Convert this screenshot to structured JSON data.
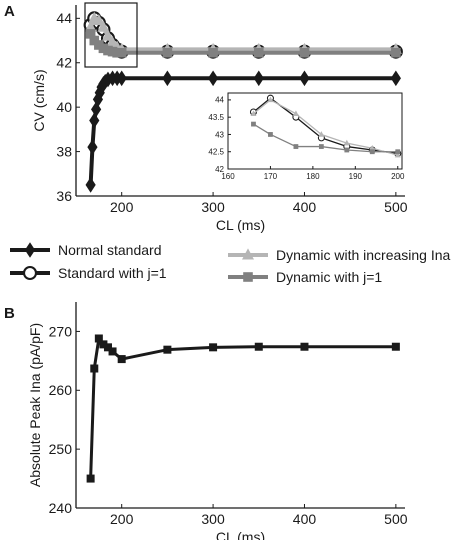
{
  "panels": {
    "a_label": "A",
    "b_label": "B"
  },
  "legend": {
    "entries": [
      {
        "label": "Normal standard",
        "color": "#1a1a1a",
        "marker": "diamond"
      },
      {
        "label": "Standard with j=1",
        "color": "#1a1a1a",
        "marker": "circle"
      },
      {
        "label": "Dynamic with increasing Ina",
        "color": "#b5b5b5",
        "marker": "triangle"
      },
      {
        "label": "Dynamic with j=1",
        "color": "#808080",
        "marker": "square"
      }
    ]
  },
  "chart_data": [
    {
      "id": "A",
      "type": "line",
      "xlabel": "CL (ms)",
      "ylabel": "CV (cm/s)",
      "xlim": [
        150,
        510
      ],
      "ylim": [
        36,
        44.6
      ],
      "xticks": [
        200,
        300,
        400,
        500
      ],
      "yticks": [
        36,
        38,
        40,
        42,
        44
      ],
      "series": [
        {
          "name": "Normal standard",
          "color": "#1a1a1a",
          "marker": "diamond",
          "x": [
            166,
            168,
            170,
            172,
            174,
            176,
            178,
            180,
            182,
            185,
            190,
            195,
            200,
            250,
            300,
            350,
            400,
            500
          ],
          "y": [
            36.5,
            38.2,
            39.4,
            39.9,
            40.35,
            40.65,
            40.9,
            41.05,
            41.15,
            41.25,
            41.3,
            41.3,
            41.3,
            41.3,
            41.3,
            41.3,
            41.3,
            41.3
          ]
        },
        {
          "name": "Standard with j=1",
          "color": "#1a1a1a",
          "marker": "circle",
          "x": [
            166,
            170,
            175,
            180,
            185,
            190,
            195,
            200,
            250,
            300,
            350,
            400,
            500
          ],
          "y": [
            43.7,
            44.0,
            43.8,
            43.5,
            43.1,
            42.8,
            42.6,
            42.5,
            42.5,
            42.5,
            42.5,
            42.5,
            42.5
          ]
        },
        {
          "name": "Dynamic with increasing Ina",
          "color": "#b5b5b5",
          "marker": "triangle",
          "x": [
            166,
            170,
            175,
            180,
            185,
            190,
            195,
            200,
            250,
            300,
            350,
            400,
            500
          ],
          "y": [
            43.6,
            44.0,
            43.9,
            43.6,
            43.2,
            42.9,
            42.7,
            42.6,
            42.6,
            42.6,
            42.6,
            42.6,
            42.6
          ]
        },
        {
          "name": "Dynamic with j=1",
          "color": "#808080",
          "marker": "square",
          "x": [
            166,
            170,
            175,
            180,
            185,
            190,
            195,
            200,
            250,
            300,
            350,
            400,
            500
          ],
          "y": [
            43.3,
            43.0,
            42.8,
            42.65,
            42.55,
            42.5,
            42.45,
            42.45,
            42.45,
            42.45,
            42.45,
            42.45,
            42.45
          ]
        }
      ]
    },
    {
      "id": "A-inset",
      "type": "line",
      "xlim": [
        160,
        201
      ],
      "ylim": [
        42,
        44.2
      ],
      "xticks": [
        160,
        170,
        180,
        190,
        200
      ],
      "yticks": [
        42,
        42.5,
        43,
        43.5,
        44
      ],
      "xtick_labels": [
        "160",
        "170",
        "180",
        "190",
        "200"
      ],
      "ytick_labels": [
        "42",
        "42.5",
        "43",
        "43.5",
        "44"
      ],
      "series": [
        {
          "name": "Standard with j=1",
          "color": "#1a1a1a",
          "marker": "circle",
          "x": [
            166,
            170,
            176,
            182,
            188,
            194,
            200
          ],
          "y": [
            43.65,
            44.05,
            43.5,
            42.9,
            42.65,
            42.55,
            42.45
          ]
        },
        {
          "name": "Dynamic with increasing Ina",
          "color": "#b5b5b5",
          "marker": "triangle",
          "x": [
            166,
            170,
            176,
            182,
            188,
            194,
            200
          ],
          "y": [
            43.6,
            44.0,
            43.6,
            43.0,
            42.75,
            42.6,
            42.4
          ]
        },
        {
          "name": "Dynamic with j=1",
          "color": "#808080",
          "marker": "square",
          "x": [
            166,
            170,
            176,
            182,
            188,
            194,
            200
          ],
          "y": [
            43.3,
            43.0,
            42.65,
            42.65,
            42.55,
            42.5,
            42.5
          ]
        }
      ]
    },
    {
      "id": "B",
      "type": "line",
      "xlabel": "CL (ms)",
      "ylabel": "Absolute Peak Ina (pA/pF)",
      "xlim": [
        150,
        510
      ],
      "ylim": [
        240,
        275
      ],
      "xticks": [
        200,
        300,
        400,
        500
      ],
      "yticks": [
        240,
        250,
        260,
        270
      ],
      "series": [
        {
          "name": "",
          "color": "#1a1a1a",
          "marker": "square",
          "x": [
            166,
            170,
            175,
            180,
            185,
            190,
            200,
            250,
            300,
            350,
            400,
            500
          ],
          "y": [
            245.0,
            263.7,
            268.8,
            267.8,
            267.3,
            266.6,
            265.3,
            266.9,
            267.3,
            267.4,
            267.4,
            267.4
          ]
        }
      ]
    }
  ]
}
